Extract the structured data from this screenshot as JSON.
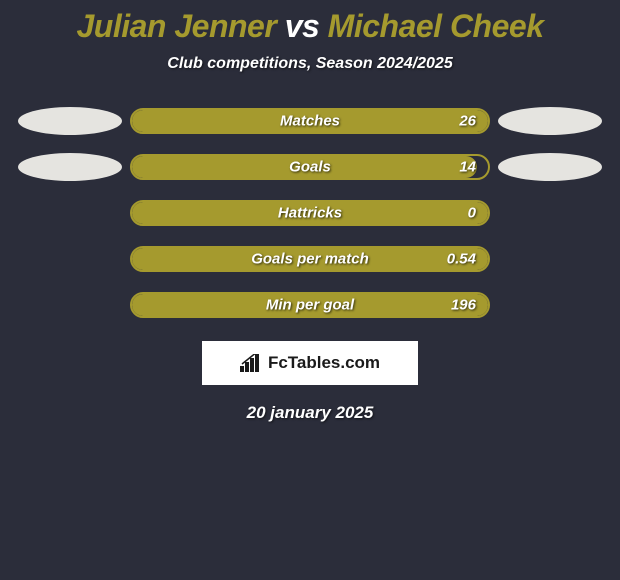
{
  "title": {
    "player1": "Julian Jenner",
    "vs": "vs",
    "player2": "Michael Cheek",
    "player1_color": "#a59a2e",
    "vs_color": "#ffffff",
    "player2_color": "#a59a2e"
  },
  "subtitle": "Club competitions, Season 2024/2025",
  "chart": {
    "background_color": "#2b2d3a",
    "bar_border_color": "#a59a2e",
    "bar_fill_color": "#a59a2e",
    "ellipse_color": "#e5e4e0",
    "text_color": "#ffffff"
  },
  "rows": [
    {
      "label": "Matches",
      "left_value": "",
      "right_value": "26",
      "left_ellipse": true,
      "right_ellipse": true,
      "fill_percent": 100
    },
    {
      "label": "Goals",
      "left_value": "",
      "right_value": "14",
      "left_ellipse": true,
      "right_ellipse": true,
      "fill_percent": 97
    },
    {
      "label": "Hattricks",
      "left_value": "",
      "right_value": "0",
      "left_ellipse": false,
      "right_ellipse": false,
      "fill_percent": 100
    },
    {
      "label": "Goals per match",
      "left_value": "",
      "right_value": "0.54",
      "left_ellipse": false,
      "right_ellipse": false,
      "fill_percent": 100
    },
    {
      "label": "Min per goal",
      "left_value": "",
      "right_value": "196",
      "left_ellipse": false,
      "right_ellipse": false,
      "fill_percent": 100
    }
  ],
  "brand": "FcTables.com",
  "footer_date": "20 january 2025"
}
